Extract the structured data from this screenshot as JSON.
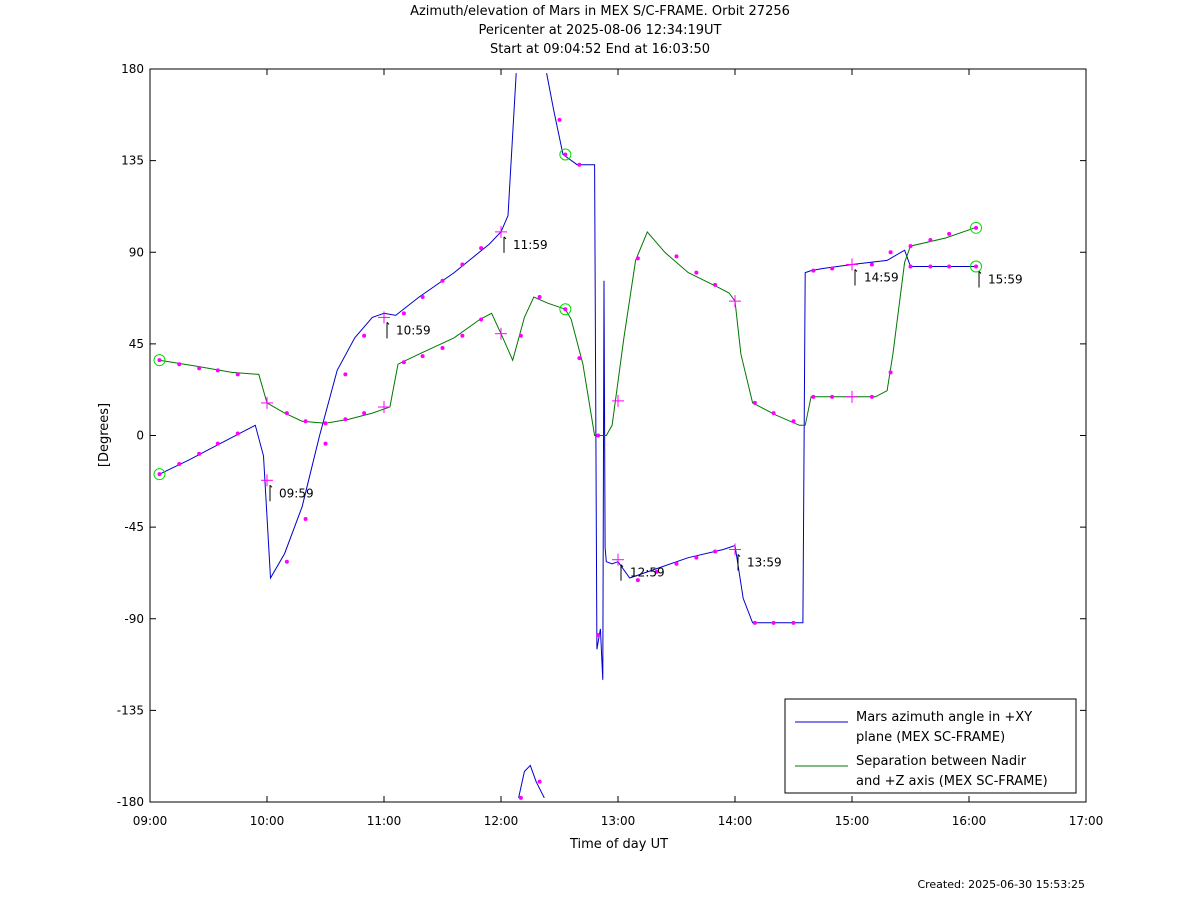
{
  "chart_data": {
    "type": "line",
    "title": "Azimuth/elevation of Mars in MEX S/C-FRAME.  Orbit 27256",
    "subtitle_1": "Pericenter at 2025-08-06 12:34:19UT",
    "subtitle_2": "Start at 09:04:52 End at 16:03:50",
    "xlabel": "Time of day UT",
    "ylabel": "[Degrees]",
    "x_unit": "hours",
    "xlim": [
      9,
      17
    ],
    "ylim": [
      -180,
      180
    ],
    "x_ticks": [
      {
        "value": 9,
        "label": "09:00"
      },
      {
        "value": 10,
        "label": "10:00"
      },
      {
        "value": 11,
        "label": "11:00"
      },
      {
        "value": 12,
        "label": "12:00"
      },
      {
        "value": 13,
        "label": "13:00"
      },
      {
        "value": 14,
        "label": "14:00"
      },
      {
        "value": 15,
        "label": "15:00"
      },
      {
        "value": 16,
        "label": "16:00"
      },
      {
        "value": 17,
        "label": "17:00"
      }
    ],
    "y_ticks": [
      180,
      135,
      90,
      45,
      0,
      -45,
      -90,
      -135,
      -180
    ],
    "grid": false,
    "legend_position": "bottom-right",
    "series": [
      {
        "name_line1": "Mars azimuth angle in +XY",
        "name_line2": "plane (MEX SC-FRAME)",
        "color": "#0000cc",
        "x": [
          9.081,
          9.333,
          9.6,
          9.9,
          9.97,
          10.03,
          10.15,
          10.3,
          10.45,
          10.6,
          10.75,
          10.9,
          11.0,
          11.1,
          11.3,
          11.6,
          11.9,
          12.0,
          12.06,
          12.13,
          12.15,
          12.2,
          12.25,
          12.3,
          12.37,
          12.39,
          12.45,
          12.53,
          12.65,
          12.8,
          12.82,
          12.85,
          12.87,
          12.88,
          12.89,
          12.9,
          12.95,
          13.0,
          13.1,
          13.3,
          13.6,
          13.9,
          14.0,
          14.07,
          14.15,
          14.4,
          14.58,
          14.6,
          14.65,
          14.75,
          15.0,
          15.3,
          15.45,
          15.5,
          16.05
        ],
        "y": [
          -19,
          -12,
          -4,
          5,
          -10,
          -70,
          -58,
          -35,
          0,
          32,
          48,
          58,
          60,
          59,
          68,
          80,
          94,
          100,
          108,
          178,
          -178,
          -165,
          -162,
          -170,
          -178,
          178,
          160,
          138,
          133,
          133,
          -105,
          -95,
          -120,
          76,
          -55,
          -62,
          -63,
          -62,
          -70,
          -66,
          -60,
          -56,
          -54,
          -80,
          -92,
          -92,
          -92,
          80,
          81,
          82,
          84,
          86,
          91,
          83,
          83
        ]
      },
      {
        "name_line1": "Separation between Nadir",
        "name_line2": "and +Z axis (MEX SC-FRAME)",
        "color": "#007700",
        "x": [
          9.081,
          9.4,
          9.7,
          9.93,
          10.0,
          10.15,
          10.3,
          10.5,
          10.7,
          10.9,
          11.05,
          11.12,
          11.3,
          11.6,
          11.82,
          11.92,
          12.0,
          12.1,
          12.2,
          12.28,
          12.4,
          12.5,
          12.55,
          12.6,
          12.7,
          12.8,
          12.9,
          12.95,
          13.05,
          13.15,
          13.25,
          13.4,
          13.6,
          13.85,
          13.95,
          14.0,
          14.05,
          14.15,
          14.35,
          14.55,
          14.6,
          14.65,
          14.8,
          15.2,
          15.3,
          15.35,
          15.45,
          15.5,
          15.8,
          16.05
        ],
        "y": [
          37,
          34,
          31,
          30,
          16,
          11,
          7,
          6,
          8,
          11,
          14,
          35,
          40,
          48,
          57,
          60,
          50,
          37,
          58,
          68,
          65,
          63,
          62,
          57,
          35,
          0,
          0,
          5,
          48,
          86,
          100,
          90,
          80,
          73,
          70,
          66,
          40,
          16,
          10,
          5,
          5,
          19,
          19,
          19,
          22,
          40,
          85,
          93,
          97,
          102
        ]
      }
    ],
    "markers": [
      {
        "x": 9.081,
        "y": -19,
        "style": "circle"
      },
      {
        "x": 9.081,
        "y": 37,
        "style": "circle"
      },
      {
        "x": 12.55,
        "y": 138,
        "style": "circle"
      },
      {
        "x": 12.55,
        "y": 62,
        "style": "circle"
      },
      {
        "x": 16.06,
        "y": 83,
        "style": "circle"
      },
      {
        "x": 16.06,
        "y": 102,
        "style": "circle"
      },
      {
        "x": 10.0,
        "y": -22,
        "style": "plus"
      },
      {
        "x": 10.0,
        "y": 16,
        "style": "plus"
      },
      {
        "x": 11.0,
        "y": 58,
        "style": "plus"
      },
      {
        "x": 11.0,
        "y": 14,
        "style": "plus"
      },
      {
        "x": 12.0,
        "y": 100,
        "style": "plus"
      },
      {
        "x": 12.0,
        "y": 50,
        "style": "plus"
      },
      {
        "x": 13.0,
        "y": -61,
        "style": "plus"
      },
      {
        "x": 13.0,
        "y": 17,
        "style": "plus"
      },
      {
        "x": 14.0,
        "y": -56,
        "style": "plus"
      },
      {
        "x": 14.0,
        "y": 66,
        "style": "plus"
      },
      {
        "x": 15.0,
        "y": 84,
        "style": "plus"
      },
      {
        "x": 15.0,
        "y": 19,
        "style": "plus"
      }
    ],
    "dots": [
      {
        "x": 9.25,
        "y": -14
      },
      {
        "x": 9.42,
        "y": -9
      },
      {
        "x": 9.58,
        "y": -4
      },
      {
        "x": 9.75,
        "y": 1
      },
      {
        "x": 10.17,
        "y": -62
      },
      {
        "x": 10.33,
        "y": -41
      },
      {
        "x": 10.5,
        "y": -4
      },
      {
        "x": 10.67,
        "y": 30
      },
      {
        "x": 10.83,
        "y": 49
      },
      {
        "x": 11.17,
        "y": 60
      },
      {
        "x": 11.33,
        "y": 68
      },
      {
        "x": 11.5,
        "y": 76
      },
      {
        "x": 11.67,
        "y": 84
      },
      {
        "x": 11.83,
        "y": 92
      },
      {
        "x": 12.17,
        "y": -178
      },
      {
        "x": 12.33,
        "y": -170
      },
      {
        "x": 12.5,
        "y": 155
      },
      {
        "x": 12.67,
        "y": 133
      },
      {
        "x": 12.83,
        "y": -98
      },
      {
        "x": 13.17,
        "y": -71
      },
      {
        "x": 13.33,
        "y": -67
      },
      {
        "x": 13.5,
        "y": -63
      },
      {
        "x": 13.67,
        "y": -60
      },
      {
        "x": 13.83,
        "y": -57
      },
      {
        "x": 14.17,
        "y": -92
      },
      {
        "x": 14.33,
        "y": -92
      },
      {
        "x": 14.5,
        "y": -92
      },
      {
        "x": 14.67,
        "y": 81
      },
      {
        "x": 14.83,
        "y": 82
      },
      {
        "x": 15.17,
        "y": 84
      },
      {
        "x": 15.33,
        "y": 90
      },
      {
        "x": 15.5,
        "y": 83
      },
      {
        "x": 15.67,
        "y": 83
      },
      {
        "x": 15.83,
        "y": 83
      },
      {
        "x": 9.25,
        "y": 35
      },
      {
        "x": 9.42,
        "y": 33
      },
      {
        "x": 9.58,
        "y": 32
      },
      {
        "x": 9.75,
        "y": 30
      },
      {
        "x": 10.17,
        "y": 11
      },
      {
        "x": 10.33,
        "y": 7
      },
      {
        "x": 10.5,
        "y": 6
      },
      {
        "x": 10.67,
        "y": 8
      },
      {
        "x": 10.83,
        "y": 11
      },
      {
        "x": 11.17,
        "y": 36
      },
      {
        "x": 11.33,
        "y": 39
      },
      {
        "x": 11.5,
        "y": 43
      },
      {
        "x": 11.67,
        "y": 49
      },
      {
        "x": 11.83,
        "y": 57
      },
      {
        "x": 12.17,
        "y": 49
      },
      {
        "x": 12.33,
        "y": 68
      },
      {
        "x": 12.67,
        "y": 38
      },
      {
        "x": 12.83,
        "y": 0
      },
      {
        "x": 13.17,
        "y": 87
      },
      {
        "x": 13.5,
        "y": 88
      },
      {
        "x": 13.67,
        "y": 80
      },
      {
        "x": 13.83,
        "y": 74
      },
      {
        "x": 14.17,
        "y": 16
      },
      {
        "x": 14.33,
        "y": 11
      },
      {
        "x": 14.5,
        "y": 7
      },
      {
        "x": 14.67,
        "y": 19
      },
      {
        "x": 14.83,
        "y": 19
      },
      {
        "x": 15.17,
        "y": 19
      },
      {
        "x": 15.33,
        "y": 31
      },
      {
        "x": 15.5,
        "y": 93
      },
      {
        "x": 15.67,
        "y": 96
      },
      {
        "x": 15.83,
        "y": 99
      }
    ],
    "annotations": [
      {
        "x": 10.0,
        "y": -22,
        "label": "09:59"
      },
      {
        "x": 11.0,
        "y": 58,
        "label": "10:59"
      },
      {
        "x": 12.0,
        "y": 100,
        "label": "11:59"
      },
      {
        "x": 13.0,
        "y": -61,
        "label": "12:59"
      },
      {
        "x": 14.0,
        "y": -56,
        "label": "13:59"
      },
      {
        "x": 15.0,
        "y": 84,
        "label": "14:59"
      },
      {
        "x": 16.06,
        "y": 83,
        "label": "15:59"
      }
    ]
  },
  "created_label": "Created: 2025-06-30 15:53:25"
}
